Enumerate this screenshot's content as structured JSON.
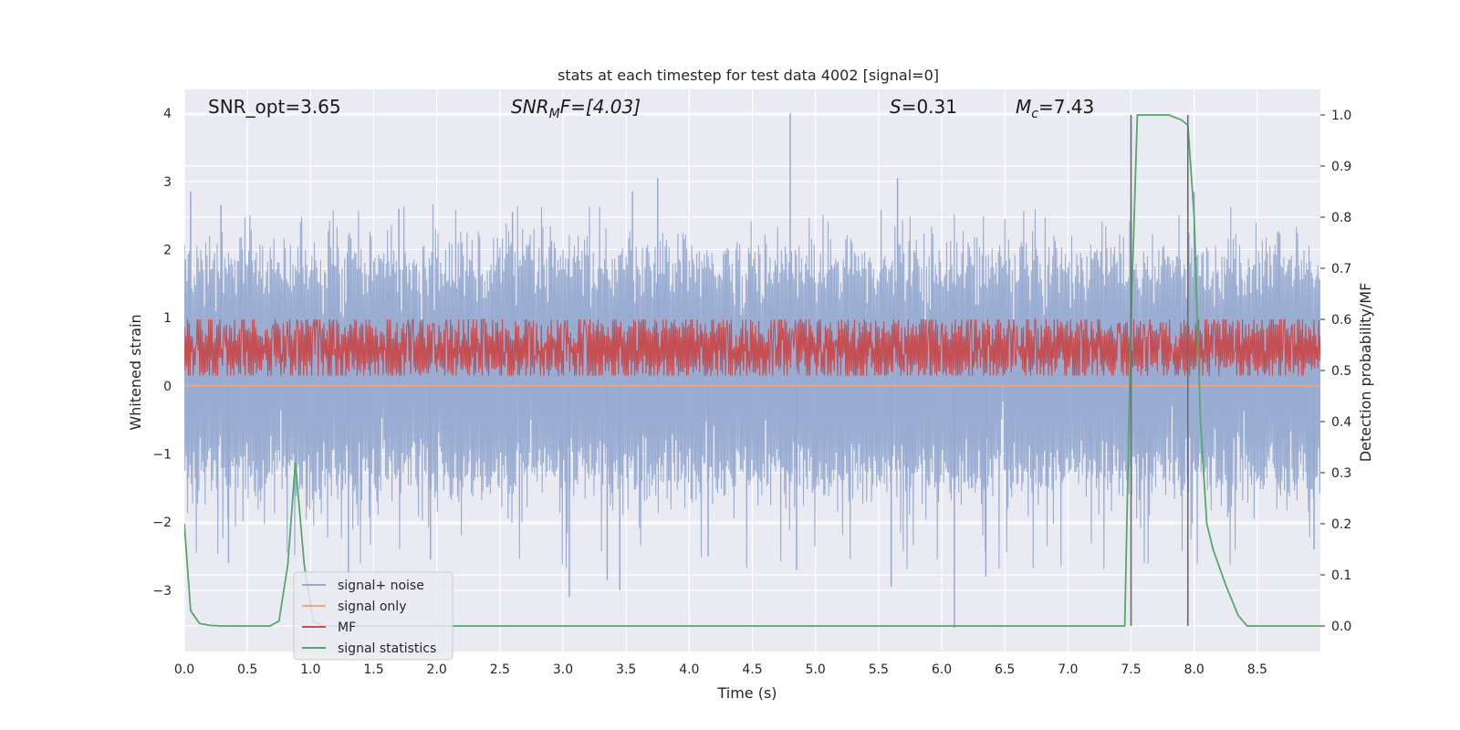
{
  "chart_data": {
    "type": "line",
    "title": "stats at each timestep for test data 4002 [signal=0]",
    "xlabel": "Time (s)",
    "ylabel_left": "Whitened strain",
    "ylabel_right": "Detection probability/MF",
    "xlim": [
      0,
      9.0
    ],
    "ylim_left": [
      -3.9,
      4.35
    ],
    "ylim_right": [
      -0.05,
      1.05
    ],
    "xticks": [
      "0.0",
      "0.5",
      "1.0",
      "1.5",
      "2.0",
      "2.5",
      "3.0",
      "3.5",
      "4.0",
      "4.5",
      "5.0",
      "5.5",
      "6.0",
      "6.5",
      "7.0",
      "7.5",
      "8.0",
      "8.5"
    ],
    "yticks_left": [
      "4",
      "3",
      "2",
      "1",
      "0",
      "−1",
      "−2",
      "−3"
    ],
    "yticks_right": [
      "1.0",
      "0.9",
      "0.8",
      "0.7",
      "0.6",
      "0.5",
      "0.4",
      "0.3",
      "0.2",
      "0.1",
      "0.0"
    ],
    "grid": true,
    "legend_location": "lower-left",
    "annotations": {
      "snr_opt": "SNR_opt=3.65",
      "snr_mf_base": "SNR",
      "snr_mf_sub": "M",
      "snr_mf_tail": "F=[4.03]",
      "s_value_base": "S",
      "s_value_tail": "=0.31",
      "mc_base": "M",
      "mc_sub": "c",
      "mc_tail": "=7.43"
    },
    "vertical_lines": [
      7.5,
      7.95
    ],
    "series": [
      {
        "name": "signal+ noise",
        "axis": "left",
        "color": "#95a9d0",
        "style": "dense-noise",
        "band_low": -1.3,
        "band_high": 1.75,
        "notable_peaks": [
          {
            "x": 0.05,
            "y": 2.85
          },
          {
            "x": 0.29,
            "y": 2.65
          },
          {
            "x": 1.7,
            "y": 2.6
          },
          {
            "x": 2.6,
            "y": 2.55
          },
          {
            "x": 3.55,
            "y": 2.85
          },
          {
            "x": 3.75,
            "y": 3.05
          },
          {
            "x": 4.8,
            "y": 4.0
          },
          {
            "x": 5.65,
            "y": 3.05
          },
          {
            "x": 7.5,
            "y": 2.75
          },
          {
            "x": 8.0,
            "y": 2.85
          }
        ],
        "notable_troughs": [
          {
            "x": 0.35,
            "y": -2.6
          },
          {
            "x": 1.3,
            "y": -2.9
          },
          {
            "x": 1.95,
            "y": -2.55
          },
          {
            "x": 3.05,
            "y": -3.1
          },
          {
            "x": 3.35,
            "y": -2.85
          },
          {
            "x": 3.45,
            "y": -3.0
          },
          {
            "x": 4.15,
            "y": -2.5
          },
          {
            "x": 4.85,
            "y": -2.7
          },
          {
            "x": 5.6,
            "y": -2.95
          },
          {
            "x": 6.1,
            "y": -3.55
          },
          {
            "x": 6.35,
            "y": -2.8
          },
          {
            "x": 8.95,
            "y": -2.4
          }
        ]
      },
      {
        "name": "signal only",
        "axis": "left",
        "color": "#e8a88a",
        "values_constant": 0.0
      },
      {
        "name": "MF",
        "axis": "right",
        "color": "#c44e52",
        "style": "dense-noise",
        "band_low": 0.5,
        "band_high": 0.58,
        "peak": {
          "x": 1.15,
          "y": 0.6
        }
      },
      {
        "name": "signal statistics",
        "axis": "right",
        "color": "#55a868",
        "x": [
          0.0,
          0.05,
          0.12,
          0.2,
          0.3,
          0.5,
          0.68,
          0.75,
          0.82,
          0.88,
          0.95,
          1.02,
          1.1,
          2.0,
          3.0,
          4.0,
          5.0,
          6.0,
          7.0,
          7.45,
          7.5,
          7.55,
          7.6,
          7.7,
          7.8,
          7.9,
          7.95,
          8.0,
          8.05,
          8.1,
          8.15,
          8.25,
          8.35,
          8.42,
          8.5,
          9.0
        ],
        "values": [
          0.2,
          0.03,
          0.005,
          0.001,
          0.0,
          0.0,
          0.0,
          0.01,
          0.12,
          0.32,
          0.12,
          0.01,
          0.0,
          0.0,
          0.0,
          0.0,
          0.0,
          0.0,
          0.0,
          0.0,
          0.6,
          1.0,
          1.0,
          1.0,
          1.0,
          0.99,
          0.98,
          0.8,
          0.4,
          0.2,
          0.15,
          0.08,
          0.02,
          0.0,
          0.0,
          0.0
        ]
      }
    ]
  }
}
